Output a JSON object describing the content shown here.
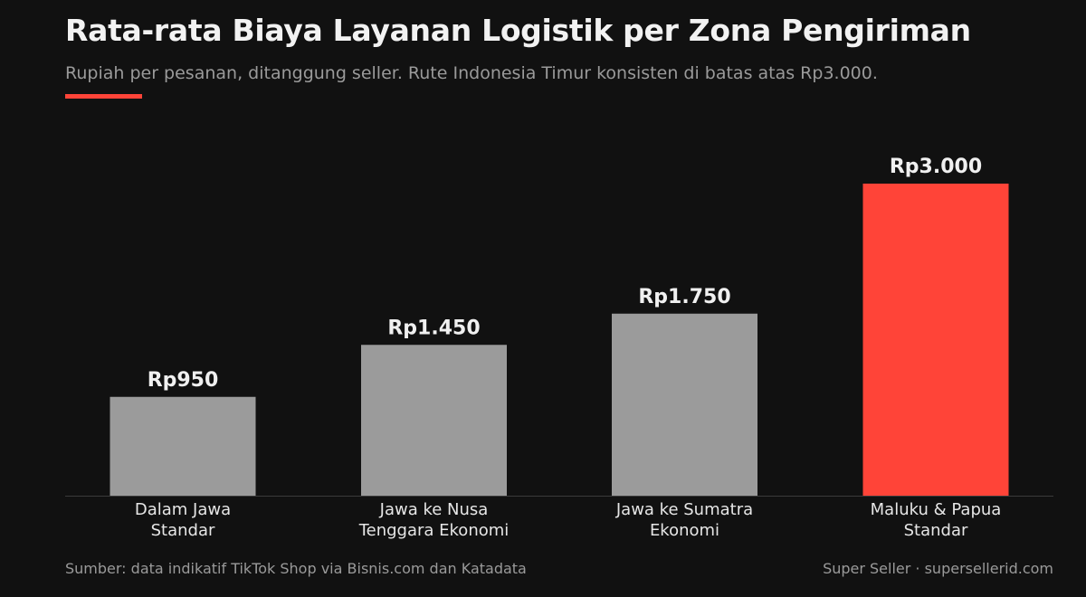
{
  "header": {
    "title": "Rata-rata Biaya Layanan Logistik per Zona Pengiriman",
    "subtitle": "Rupiah per pesanan, ditanggung seller. Rute Indonesia Timur konsisten di batas atas Rp3.000."
  },
  "footer": {
    "source": "Sumber: data indikatif TikTok Shop via Bisnis.com dan Katadata",
    "brand": "Super Seller · supersellerid.com"
  },
  "colors": {
    "background": "#111111",
    "bar_default": "#9b9b9b",
    "bar_highlight": "#ff4438",
    "accent": "#ff4438"
  },
  "chart_data": {
    "type": "bar",
    "categories": [
      [
        "Dalam Jawa",
        "Standar"
      ],
      [
        "Jawa ke Nusa",
        "Tenggara Ekonomi"
      ],
      [
        "Jawa ke Sumatra",
        "Ekonomi"
      ],
      [
        "Maluku & Papua",
        "Standar"
      ]
    ],
    "values": [
      950,
      1450,
      1750,
      3000
    ],
    "value_labels": [
      "Rp950",
      "Rp1.450",
      "Rp1.750",
      "Rp3.000"
    ],
    "highlight_index": 3,
    "ylim": [
      0,
      3000
    ],
    "grid": false,
    "legend": "none"
  }
}
